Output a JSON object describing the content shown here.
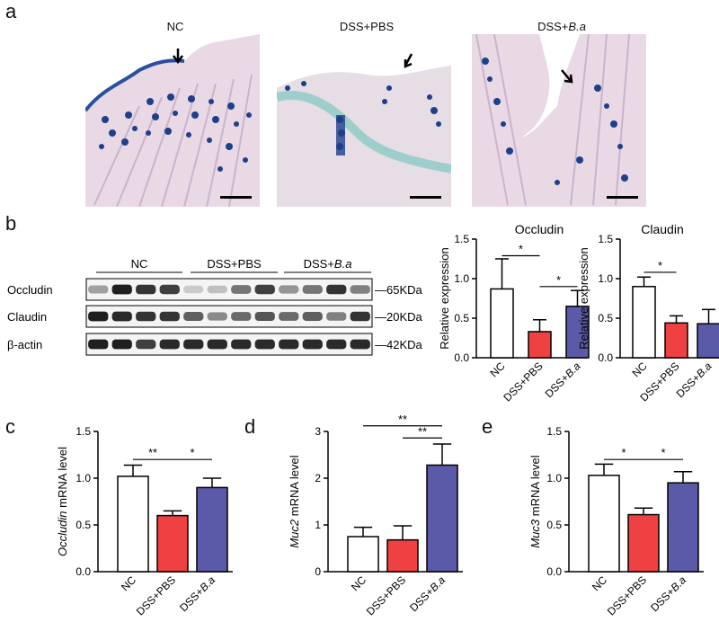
{
  "panels": {
    "a": "a",
    "b": "b",
    "c": "c",
    "d": "d",
    "e": "e"
  },
  "histology": {
    "titles": [
      {
        "main": "NC",
        "italic": ""
      },
      {
        "main": "DSS+PBS",
        "italic": ""
      },
      {
        "main": "DSS+",
        "italic": "B.a"
      }
    ]
  },
  "western": {
    "groups": [
      {
        "main": "NC",
        "italic": ""
      },
      {
        "main": "DSS+PBS",
        "italic": ""
      },
      {
        "main": "DSS+",
        "italic": "B.a"
      }
    ],
    "rows": [
      {
        "label": "Occludin",
        "size": "65KDa",
        "intensities": [
          0.35,
          0.95,
          0.85,
          0.8,
          0.15,
          0.2,
          0.55,
          0.8,
          0.4,
          0.55,
          0.85,
          0.5
        ]
      },
      {
        "label": "Claudin",
        "size": "20KDa",
        "intensities": [
          0.95,
          0.9,
          0.85,
          0.85,
          0.65,
          0.45,
          0.6,
          0.7,
          0.6,
          0.65,
          0.5,
          0.85
        ]
      },
      {
        "label": "β-actin",
        "size": "42KDa",
        "intensities": [
          0.95,
          0.95,
          0.8,
          0.9,
          0.9,
          0.9,
          0.9,
          0.9,
          0.9,
          0.9,
          0.9,
          0.9
        ]
      }
    ]
  },
  "colors": {
    "nc": "#ffffff",
    "pbs": "#ef4042",
    "ba": "#5b5aa8",
    "stain_dark": "#1e3f8a",
    "stain_light": "#e9d9e6"
  },
  "chart_data": [
    {
      "id": "b-occludin",
      "type": "bar",
      "title": "Occludin",
      "ylabel": "Relative expression",
      "categories": [
        {
          "main": "NC",
          "italic": ""
        },
        {
          "main": "DSS+PBS",
          "italic": ""
        },
        {
          "main": "DSS+",
          "italic": "B.a"
        }
      ],
      "values": [
        0.87,
        0.33,
        0.65
      ],
      "errors": [
        0.38,
        0.15,
        0.2
      ],
      "ylim": [
        0,
        1.5
      ],
      "yticks": [
        "0.0",
        "0.5",
        "1.0",
        "1.5"
      ],
      "ytick_values": [
        0,
        0.5,
        1.0,
        1.5
      ],
      "significance": [
        {
          "from": 0,
          "to": 1,
          "y": 1.29,
          "label": "*"
        },
        {
          "from": 1,
          "to": 2,
          "y": 0.9,
          "label": "*"
        }
      ]
    },
    {
      "id": "b-claudin",
      "type": "bar",
      "title": "Claudin",
      "ylabel": "Relative expression",
      "categories": [
        {
          "main": "NC",
          "italic": ""
        },
        {
          "main": "DSS+PBS",
          "italic": ""
        },
        {
          "main": "DSS+",
          "italic": "B.a"
        }
      ],
      "values": [
        0.9,
        0.44,
        0.43
      ],
      "errors": [
        0.12,
        0.09,
        0.18
      ],
      "ylim": [
        0,
        1.5
      ],
      "yticks": [
        "0.0",
        "0.5",
        "1.0",
        "1.5"
      ],
      "ytick_values": [
        0,
        0.5,
        1.0,
        1.5
      ],
      "significance": [
        {
          "from": 0,
          "to": 1,
          "y": 1.08,
          "label": "*"
        }
      ]
    },
    {
      "id": "c",
      "type": "bar",
      "title": "",
      "ylabel_italic": "Occludin",
      "ylabel": " mRNA level",
      "categories": [
        {
          "main": "NC",
          "italic": ""
        },
        {
          "main": "DSS+PBS",
          "italic": ""
        },
        {
          "main": "DSS+",
          "italic": "B.a"
        }
      ],
      "values": [
        1.02,
        0.6,
        0.9
      ],
      "errors": [
        0.12,
        0.05,
        0.1
      ],
      "ylim": [
        0,
        1.5
      ],
      "yticks": [
        "0.0",
        "0.5",
        "1.0",
        "1.5"
      ],
      "ytick_values": [
        0,
        0.5,
        1.0,
        1.5
      ],
      "significance": [
        {
          "from": 0,
          "to": 1,
          "y": 1.2,
          "label": "**"
        },
        {
          "from": 1,
          "to": 2,
          "y": 1.2,
          "label": "*"
        }
      ]
    },
    {
      "id": "d",
      "type": "bar",
      "title": "",
      "ylabel_italic": "Muc2",
      "ylabel": " mRNA level",
      "categories": [
        {
          "main": "NC",
          "italic": ""
        },
        {
          "main": "DSS+PBS",
          "italic": ""
        },
        {
          "main": "DSS+",
          "italic": "B.a"
        }
      ],
      "values": [
        0.75,
        0.68,
        2.28
      ],
      "errors": [
        0.2,
        0.3,
        0.45
      ],
      "ylim": [
        0,
        3
      ],
      "yticks": [
        "0",
        "1",
        "2",
        "3"
      ],
      "ytick_values": [
        0,
        1,
        2,
        3
      ],
      "significance": [
        {
          "from": 0,
          "to": 2,
          "y": 3.12,
          "label": "**"
        },
        {
          "from": 1,
          "to": 2,
          "y": 2.86,
          "label": "**"
        }
      ]
    },
    {
      "id": "e",
      "type": "bar",
      "title": "",
      "ylabel_italic": "Muc3",
      "ylabel": " mRNA level",
      "categories": [
        {
          "main": "NC",
          "italic": ""
        },
        {
          "main": "DSS+PBS",
          "italic": ""
        },
        {
          "main": "DSS+",
          "italic": "B.a"
        }
      ],
      "values": [
        1.03,
        0.61,
        0.95
      ],
      "errors": [
        0.12,
        0.07,
        0.12
      ],
      "ylim": [
        0,
        1.5
      ],
      "yticks": [
        "0.0",
        "0.5",
        "1.0",
        "1.5"
      ],
      "ytick_values": [
        0,
        0.5,
        1.0,
        1.5
      ],
      "significance": [
        {
          "from": 0,
          "to": 1,
          "y": 1.2,
          "label": "*"
        },
        {
          "from": 1,
          "to": 2,
          "y": 1.2,
          "label": "*"
        }
      ]
    }
  ]
}
